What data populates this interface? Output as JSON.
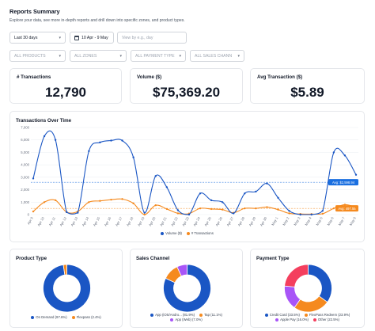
{
  "page": {
    "title": "Reports Summary",
    "description": "Explore your data, see more in-depth reports and drill down into specific zones, and product types."
  },
  "filters": {
    "period": "Last 30 days",
    "date_range": "10 Apr - 9 May",
    "view_by_placeholder": "View by  e.g., day",
    "products": "ALL PRODUCTS",
    "zones": "ALL ZONES",
    "payment_type": "ALL PAYMENT TYPE",
    "sales_chann": "ALL SALES CHANN"
  },
  "kpis": {
    "transactions": {
      "label": "# Transactions",
      "value": "12,790"
    },
    "volume": {
      "label": "Volume ($)",
      "value": "$75,369.20"
    },
    "avg": {
      "label": "Avg Transaction ($)",
      "value": "$5.89"
    }
  },
  "colors": {
    "blue": "#1a56c4",
    "orange": "#f58a1f",
    "accent_blue": "#1a6fe0"
  },
  "chart_data": [
    {
      "type": "line",
      "title": "Transactions Over Time",
      "categories": [
        "Apr 9",
        "Apr 10",
        "Apr 11",
        "Apr 12",
        "Apr 13",
        "Apr 14",
        "Apr 15",
        "Apr 16",
        "Apr 17",
        "Apr 18",
        "Apr 19",
        "Apr 20",
        "Apr 21",
        "Apr 22",
        "Apr 23",
        "Apr 24",
        "Apr 25",
        "Apr 26",
        "Apr 27",
        "Apr 28",
        "Apr 29",
        "Apr 30",
        "May 1",
        "May 2",
        "May 3",
        "May 4",
        "May 5",
        "May 6",
        "May 7",
        "May 8"
      ],
      "series": [
        {
          "name": "Volume ($)",
          "color": "#1a56c4",
          "values": [
            2900,
            6300,
            6000,
            200,
            150,
            5100,
            5800,
            5950,
            5950,
            4600,
            150,
            3100,
            2200,
            350,
            0,
            1700,
            1150,
            1000,
            100,
            1700,
            1850,
            2500,
            1350,
            300,
            0,
            0,
            300,
            5000,
            4750,
            3200
          ]
        },
        {
          "name": "# Transactions",
          "color": "#f58a1f",
          "values": [
            250,
            1000,
            1150,
            200,
            250,
            1000,
            1100,
            1200,
            1250,
            900,
            0,
            750,
            450,
            100,
            80,
            500,
            450,
            400,
            150,
            500,
            500,
            600,
            400,
            100,
            50,
            40,
            70,
            500,
            800,
            600
          ]
        }
      ],
      "yticks": [
        "0",
        "1,000",
        "2,000",
        "3,000",
        "4,000",
        "5,000",
        "6,000",
        "7,000"
      ],
      "ylim": [
        0,
        7000
      ],
      "reference_lines": [
        {
          "label": "Avg: $2,598.94",
          "value": 2598.94,
          "color": "#1a6fe0"
        },
        {
          "label": "Avg: 497.55",
          "value": 497.55,
          "color": "#f58a1f"
        }
      ],
      "legend": "bottom"
    },
    {
      "type": "pie",
      "title": "Product Type",
      "slices": [
        {
          "name": "On Demand (97.6%)",
          "value": 97.6,
          "color": "#1a56c4"
        },
        {
          "name": "Flexpass (2.4%)",
          "value": 2.4,
          "color": "#f58a1f"
        }
      ]
    },
    {
      "type": "pie",
      "title": "Sales Channel",
      "slices": [
        {
          "name": "App (iOS/Andro... (81.9%)",
          "value": 81.9,
          "color": "#1a56c4"
        },
        {
          "name": "Tap (11.1%)",
          "value": 11.1,
          "color": "#f58a1f"
        },
        {
          "name": "App (Web) (7.0%)",
          "value": 7.0,
          "color": "#a855f7"
        }
      ]
    },
    {
      "type": "pie",
      "title": "Payment Type",
      "slices": [
        {
          "name": "Credit Card (33.5%)",
          "value": 33.5,
          "color": "#1a56c4"
        },
        {
          "name": "FlexPass Redeem (23.9%)",
          "value": 23.9,
          "color": "#f58a1f"
        },
        {
          "name": "Apple Pay (16.0%)",
          "value": 16.0,
          "color": "#a855f7"
        },
        {
          "name": "Other (22.5%)",
          "value": 22.5,
          "color": "#f43f5e"
        }
      ]
    }
  ]
}
